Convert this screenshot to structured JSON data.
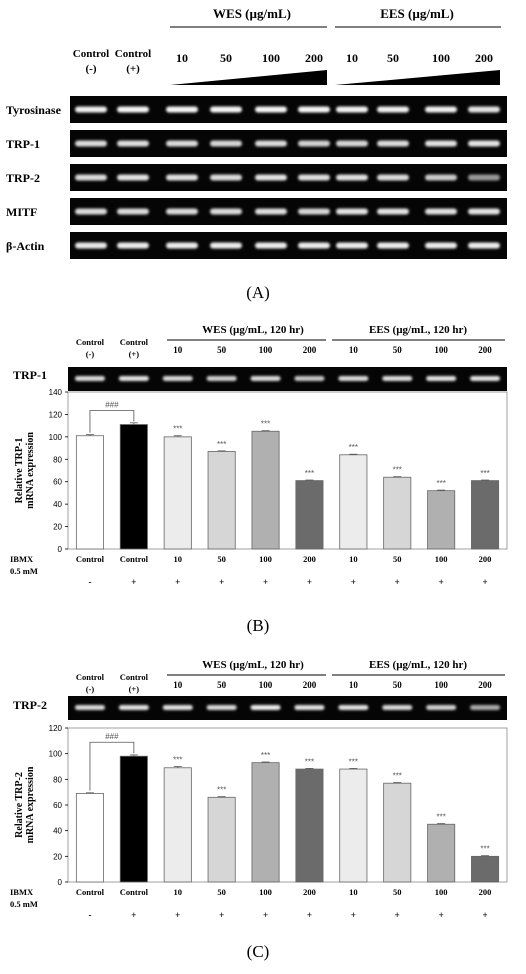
{
  "panelA": {
    "label": "(A)",
    "group_wes": "WES (µg/mL)",
    "group_ees": "EES (µg/mL)",
    "col_headers": [
      {
        "line1": "Control",
        "line2": "(-)"
      },
      {
        "line1": "Control",
        "line2": "(+)"
      },
      {
        "line1": "10",
        "line2": ""
      },
      {
        "line1": "50",
        "line2": ""
      },
      {
        "line1": "100",
        "line2": ""
      },
      {
        "line1": "200",
        "line2": ""
      },
      {
        "line1": "10",
        "line2": ""
      },
      {
        "line1": "50",
        "line2": ""
      },
      {
        "line1": "100",
        "line2": ""
      },
      {
        "line1": "200",
        "line2": ""
      }
    ],
    "genes": [
      "Tyrosinase",
      "TRP-1",
      "TRP-2",
      "MITF",
      "β-Actin"
    ],
    "band_intensity": [
      [
        0.92,
        0.95,
        0.95,
        0.95,
        0.95,
        0.95,
        0.93,
        0.92,
        0.92,
        0.85
      ],
      [
        0.8,
        0.82,
        0.8,
        0.78,
        0.8,
        0.75,
        0.78,
        0.8,
        0.84,
        0.86
      ],
      [
        0.8,
        0.85,
        0.83,
        0.8,
        0.85,
        0.82,
        0.83,
        0.8,
        0.72,
        0.45
      ],
      [
        0.8,
        0.8,
        0.8,
        0.8,
        0.82,
        0.78,
        0.85,
        0.85,
        0.83,
        0.85
      ],
      [
        0.88,
        0.9,
        0.9,
        0.9,
        0.9,
        0.9,
        0.9,
        0.9,
        0.9,
        0.9
      ]
    ]
  },
  "panelB": {
    "label": "(B)",
    "gene": "TRP-1",
    "group_wes": "WES (µg/mL, 120 hr)",
    "group_ees": "EES (µg/mL, 120 hr)",
    "col_headers": [
      {
        "line1": "Control",
        "line2": "(-)"
      },
      {
        "line1": "Control",
        "line2": "(+)"
      },
      {
        "line1": "10",
        "line2": ""
      },
      {
        "line1": "50",
        "line2": ""
      },
      {
        "line1": "100",
        "line2": ""
      },
      {
        "line1": "200",
        "line2": ""
      },
      {
        "line1": "10",
        "line2": ""
      },
      {
        "line1": "50",
        "line2": ""
      },
      {
        "line1": "100",
        "line2": ""
      },
      {
        "line1": "200",
        "line2": ""
      }
    ],
    "ibmx_label": "IBMX",
    "ibmx_conc": "0.5 mM",
    "ibmx_signs": [
      "-",
      "+",
      "+",
      "+",
      "+",
      "+",
      "+",
      "+",
      "+",
      "+"
    ],
    "band_intensity": [
      0.8,
      0.85,
      0.8,
      0.75,
      0.8,
      0.7,
      0.8,
      0.82,
      0.85,
      0.85
    ]
  },
  "panelC": {
    "label": "(C)",
    "gene": "TRP-2",
    "group_wes": "WES (µg/mL, 120 hr)",
    "group_ees": "EES (µg/mL, 120 hr)",
    "col_headers": [
      {
        "line1": "Control",
        "line2": "(-)"
      },
      {
        "line1": "Control",
        "line2": "(+)"
      },
      {
        "line1": "10",
        "line2": ""
      },
      {
        "line1": "50",
        "line2": ""
      },
      {
        "line1": "100",
        "line2": ""
      },
      {
        "line1": "200",
        "line2": ""
      },
      {
        "line1": "10",
        "line2": ""
      },
      {
        "line1": "50",
        "line2": ""
      },
      {
        "line1": "100",
        "line2": ""
      },
      {
        "line1": "200",
        "line2": ""
      }
    ],
    "ibmx_label": "IBMX",
    "ibmx_conc": "0.5 mM",
    "ibmx_signs": [
      "-",
      "+",
      "+",
      "+",
      "+",
      "+",
      "+",
      "+",
      "+",
      "+"
    ],
    "band_intensity": [
      0.8,
      0.85,
      0.85,
      0.8,
      0.9,
      0.85,
      0.85,
      0.8,
      0.75,
      0.55
    ]
  },
  "chart_data": [
    {
      "type": "bar",
      "panel": "B",
      "categories": [
        "Control",
        "Control",
        "10",
        "50",
        "100",
        "200",
        "10",
        "50",
        "100",
        "200"
      ],
      "values": [
        101,
        111,
        100,
        87,
        105,
        61,
        84,
        64,
        52,
        61
      ],
      "errors": [
        1,
        1.5,
        1,
        0.5,
        0.5,
        0.5,
        0.5,
        0.5,
        0.5,
        0.5
      ],
      "colors": [
        "#ffffff",
        "#000000",
        "#ececec",
        "#d6d6d6",
        "#b0b0b0",
        "#6b6b6b",
        "#ececec",
        "#d6d6d6",
        "#b0b0b0",
        "#6b6b6b"
      ],
      "significance": [
        "",
        "",
        "***",
        "***",
        "***",
        "***",
        "***",
        "***",
        "***",
        "***"
      ],
      "bracket_label": "###",
      "ylabel": "Relative TRP-1\nmRNA expression",
      "ylim": [
        0,
        140
      ],
      "yticks": [
        0,
        20,
        40,
        60,
        80,
        100,
        120,
        140
      ]
    },
    {
      "type": "bar",
      "panel": "C",
      "categories": [
        "Control",
        "Control",
        "10",
        "50",
        "100",
        "200",
        "10",
        "50",
        "100",
        "200"
      ],
      "values": [
        69,
        98,
        89,
        66,
        93,
        88,
        88,
        77,
        45,
        20
      ],
      "errors": [
        0.5,
        1,
        1,
        0.5,
        0.5,
        0.5,
        0.5,
        0.5,
        0.5,
        0.5
      ],
      "colors": [
        "#ffffff",
        "#000000",
        "#ececec",
        "#d6d6d6",
        "#b0b0b0",
        "#6b6b6b",
        "#ececec",
        "#d6d6d6",
        "#b0b0b0",
        "#6b6b6b"
      ],
      "significance": [
        "",
        "",
        "***",
        "***",
        "***",
        "***",
        "***",
        "***",
        "***",
        "***"
      ],
      "bracket_label": "###",
      "ylabel": "Relative TRP-2\nmRNA expression",
      "ylim": [
        0,
        120
      ],
      "yticks": [
        0,
        20,
        40,
        60,
        80,
        100,
        120
      ]
    }
  ]
}
